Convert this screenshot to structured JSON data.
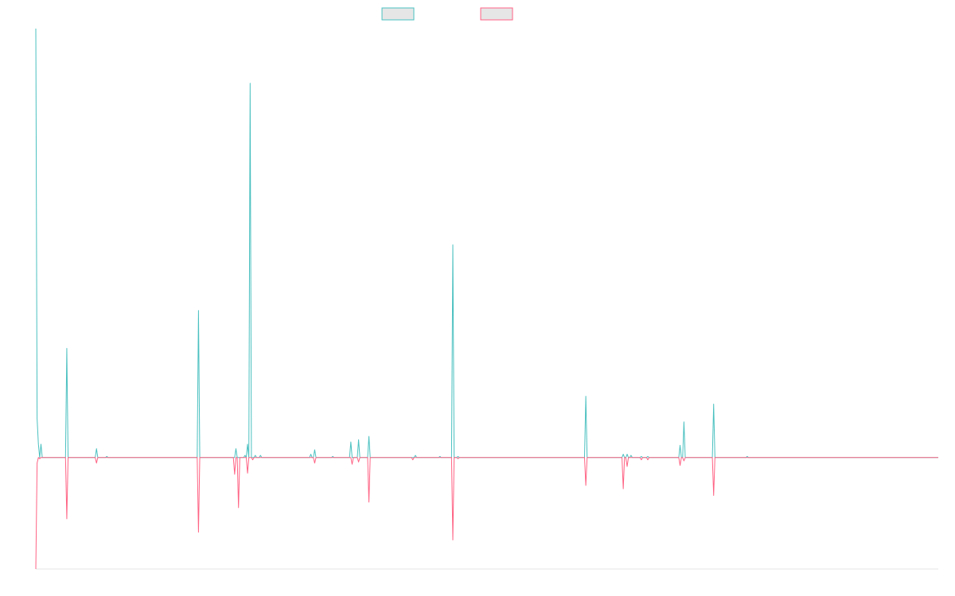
{
  "chart_data": {
    "type": "line",
    "title": "",
    "xlabel": "",
    "ylabel": "",
    "x_count": 700,
    "ylim": [
      -1.0,
      3.85
    ],
    "grid": false,
    "legend_placement": "top-center",
    "series": [
      {
        "color": "#4bc0c0",
        "legend_fill": "#e6e6e6",
        "spikes": [
          [
            0,
            3.85
          ],
          [
            1,
            0.35
          ],
          [
            2,
            0.12
          ],
          [
            4,
            0.12
          ],
          [
            8,
            0.0
          ],
          [
            24,
            0.98
          ],
          [
            47,
            0.08
          ],
          [
            55,
            0.01
          ],
          [
            126,
            1.32
          ],
          [
            155,
            0.08
          ],
          [
            162,
            0.02
          ],
          [
            164,
            0.12
          ],
          [
            166,
            3.36
          ],
          [
            170,
            0.02
          ],
          [
            174,
            0.02
          ],
          [
            213,
            0.03
          ],
          [
            216,
            0.07
          ],
          [
            230,
            0.01
          ],
          [
            244,
            0.14
          ],
          [
            250,
            0.16
          ],
          [
            258,
            0.19
          ],
          [
            294,
            0.02
          ],
          [
            313,
            0.01
          ],
          [
            323,
            1.91
          ],
          [
            327,
            0.01
          ],
          [
            426,
            0.55
          ],
          [
            455,
            0.03
          ],
          [
            458,
            0.03
          ],
          [
            461,
            0.02
          ],
          [
            469,
            0.01
          ],
          [
            474,
            0.01
          ],
          [
            499,
            0.11
          ],
          [
            502,
            0.32
          ],
          [
            525,
            0.48
          ],
          [
            551,
            0.01
          ]
        ]
      },
      {
        "color": "#ff6384",
        "legend_fill": "#e6e6e6",
        "spikes": [
          [
            0,
            -1.0
          ],
          [
            1,
            -0.05
          ],
          [
            3,
            -0.01
          ],
          [
            24,
            -0.55
          ],
          [
            47,
            -0.05
          ],
          [
            126,
            -0.67
          ],
          [
            154,
            -0.15
          ],
          [
            157,
            -0.45
          ],
          [
            164,
            -0.14
          ],
          [
            168,
            -0.02
          ],
          [
            216,
            -0.05
          ],
          [
            245,
            -0.06
          ],
          [
            250,
            -0.04
          ],
          [
            258,
            -0.4
          ],
          [
            292,
            -0.02
          ],
          [
            323,
            -0.74
          ],
          [
            327,
            -0.01
          ],
          [
            426,
            -0.25
          ],
          [
            455,
            -0.28
          ],
          [
            458,
            -0.08
          ],
          [
            469,
            -0.02
          ],
          [
            474,
            -0.02
          ],
          [
            499,
            -0.07
          ],
          [
            502,
            -0.03
          ],
          [
            525,
            -0.34
          ]
        ]
      }
    ]
  }
}
